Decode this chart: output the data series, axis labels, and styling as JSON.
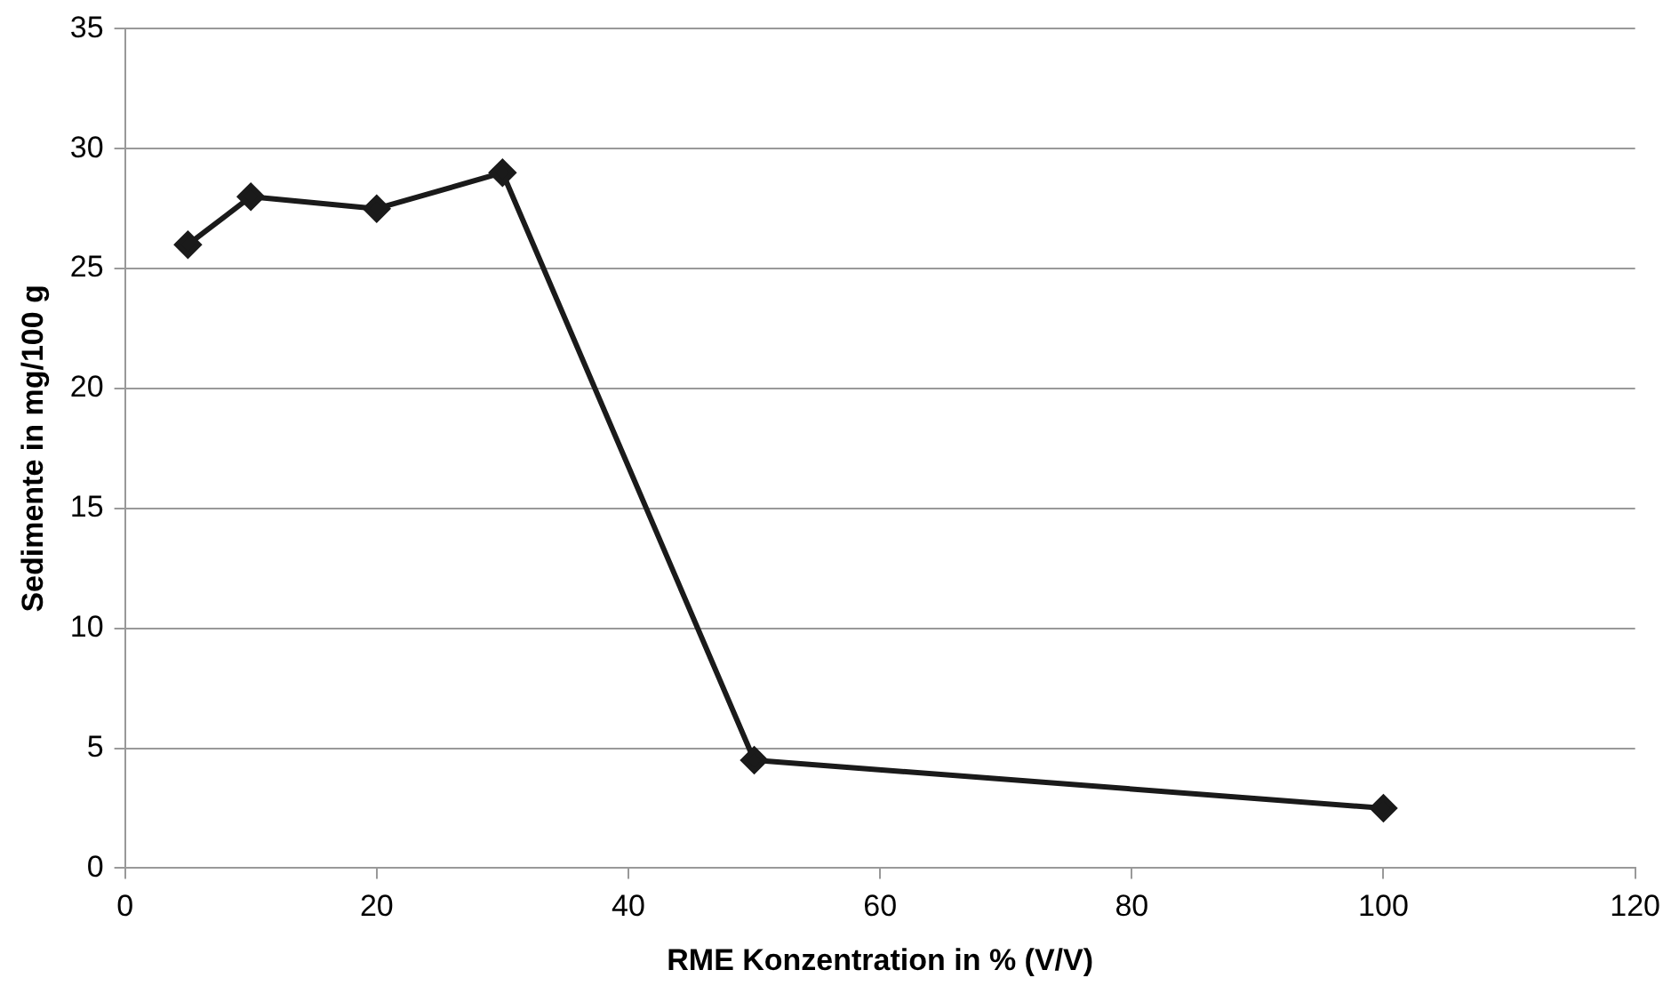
{
  "chart_data": {
    "type": "line",
    "xlabel": "RME Konzentration in % (V/V)",
    "ylabel": "Sedimente in mg/100 g",
    "x": [
      5,
      10,
      20,
      30,
      50,
      100
    ],
    "series": [
      {
        "color": "#1a1a1a",
        "values": [
          26,
          28,
          27.5,
          29,
          4.5,
          2.5
        ]
      }
    ],
    "xlim": [
      0,
      120
    ],
    "xticks": [
      0,
      20,
      40,
      60,
      80,
      100,
      120
    ],
    "ylim": [
      0,
      35
    ],
    "yticks": [
      0,
      5,
      10,
      15,
      20,
      25,
      30,
      35
    ],
    "grid": "y",
    "legend": false,
    "marker": "diamond",
    "line_style": "solid"
  }
}
